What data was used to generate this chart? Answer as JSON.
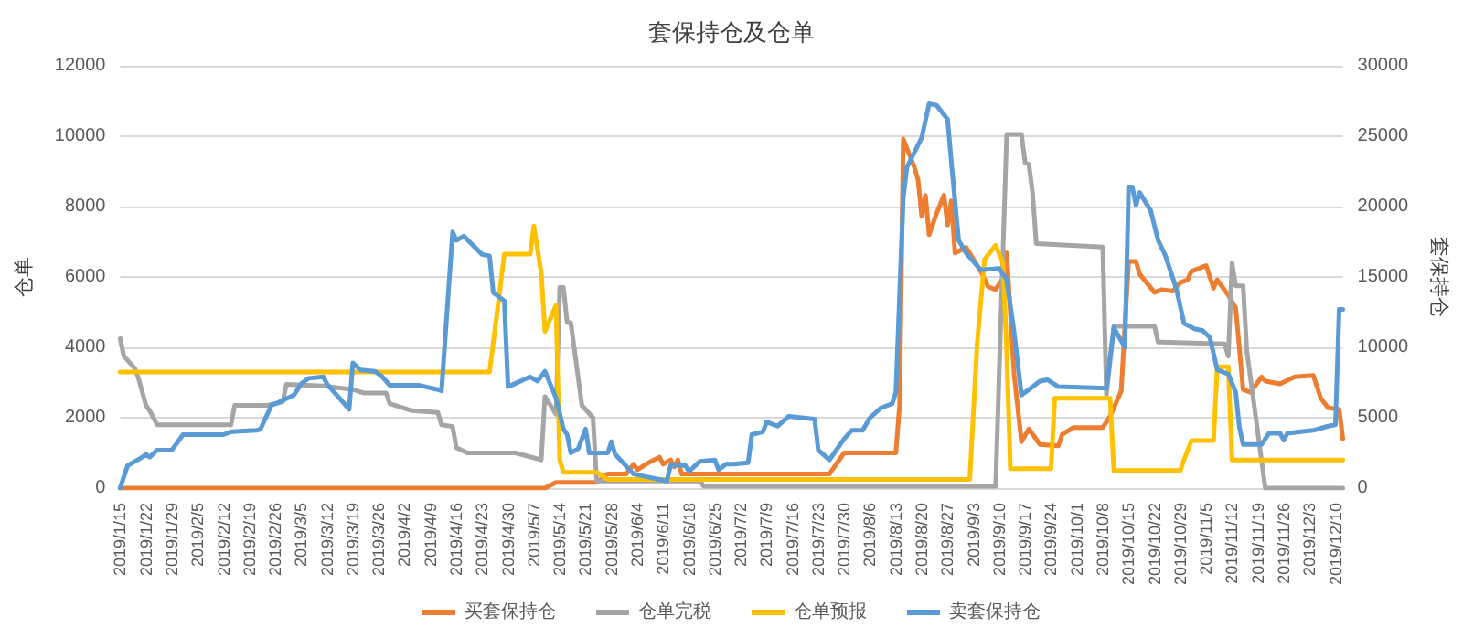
{
  "chart_data": {
    "type": "line",
    "title": "套保持仓及仓单",
    "ylabel": "仓单",
    "y2label": "套保持仓",
    "xlim": [
      "2019-01-15",
      "2019-12-12"
    ],
    "xticks": [
      {
        "value": "2019-01-15",
        "label": "2019/1/15"
      },
      {
        "value": "2019-01-22",
        "label": "2019/1/22"
      },
      {
        "value": "2019-01-29",
        "label": "2019/1/29"
      },
      {
        "value": "2019-02-05",
        "label": "2019/2/5"
      },
      {
        "value": "2019-02-12",
        "label": "2019/2/12"
      },
      {
        "value": "2019-02-19",
        "label": "2019/2/19"
      },
      {
        "value": "2019-02-26",
        "label": "2019/2/26"
      },
      {
        "value": "2019-03-05",
        "label": "2019/3/5"
      },
      {
        "value": "2019-03-12",
        "label": "2019/3/12"
      },
      {
        "value": "2019-03-19",
        "label": "2019/3/19"
      },
      {
        "value": "2019-03-26",
        "label": "2019/3/26"
      },
      {
        "value": "2019-04-02",
        "label": "2019/4/2"
      },
      {
        "value": "2019-04-09",
        "label": "2019/4/9"
      },
      {
        "value": "2019-04-16",
        "label": "2019/4/16"
      },
      {
        "value": "2019-04-23",
        "label": "2019/4/23"
      },
      {
        "value": "2019-04-30",
        "label": "2019/4/30"
      },
      {
        "value": "2019-05-07",
        "label": "2019/5/7"
      },
      {
        "value": "2019-05-14",
        "label": "2019/5/14"
      },
      {
        "value": "2019-05-21",
        "label": "2019/5/21"
      },
      {
        "value": "2019-05-28",
        "label": "2019/5/28"
      },
      {
        "value": "2019-06-04",
        "label": "2019/6/4"
      },
      {
        "value": "2019-06-11",
        "label": "2019/6/11"
      },
      {
        "value": "2019-06-18",
        "label": "2019/6/18"
      },
      {
        "value": "2019-06-25",
        "label": "2019/6/25"
      },
      {
        "value": "2019-07-02",
        "label": "2019/7/2"
      },
      {
        "value": "2019-07-09",
        "label": "2019/7/9"
      },
      {
        "value": "2019-07-16",
        "label": "2019/7/16"
      },
      {
        "value": "2019-07-23",
        "label": "2019/7/23"
      },
      {
        "value": "2019-07-30",
        "label": "2019/7/30"
      },
      {
        "value": "2019-08-06",
        "label": "2019/8/6"
      },
      {
        "value": "2019-08-13",
        "label": "2019/8/13"
      },
      {
        "value": "2019-08-20",
        "label": "2019/8/20"
      },
      {
        "value": "2019-08-27",
        "label": "2019/8/27"
      },
      {
        "value": "2019-09-03",
        "label": "2019/9/3"
      },
      {
        "value": "2019-09-10",
        "label": "2019/9/10"
      },
      {
        "value": "2019-09-17",
        "label": "2019/9/17"
      },
      {
        "value": "2019-09-24",
        "label": "2019/9/24"
      },
      {
        "value": "2019-10-01",
        "label": "2019/10/1"
      },
      {
        "value": "2019-10-08",
        "label": "2019/10/8"
      },
      {
        "value": "2019-10-15",
        "label": "2019/10/15"
      },
      {
        "value": "2019-10-22",
        "label": "2019/10/22"
      },
      {
        "value": "2019-10-29",
        "label": "2019/10/29"
      },
      {
        "value": "2019-11-05",
        "label": "2019/11/5"
      },
      {
        "value": "2019-11-12",
        "label": "2019/11/12"
      },
      {
        "value": "2019-11-19",
        "label": "2019/11/19"
      },
      {
        "value": "2019-11-26",
        "label": "2019/11/26"
      },
      {
        "value": "2019-12-03",
        "label": "2019/12/3"
      },
      {
        "value": "2019-12-10",
        "label": "2019/12/10"
      }
    ],
    "ylim": [
      0,
      12000
    ],
    "yticks": [
      0,
      2000,
      4000,
      6000,
      8000,
      10000,
      12000
    ],
    "y2lim": [
      0,
      30000
    ],
    "y2ticks": [
      0,
      5000,
      10000,
      15000,
      20000,
      25000,
      30000
    ],
    "grid": "y",
    "legend": "bottom",
    "marker": "none",
    "line_style": "solid",
    "series": [
      {
        "name": "买套保持仓",
        "color": "#ed7d31",
        "axis": "y2",
        "x": [
          "2019-01-15",
          "2019-05-10",
          "2019-05-13",
          "2019-05-24",
          "2019-05-27",
          "2019-06-01",
          "2019-06-03",
          "2019-06-04",
          "2019-06-07",
          "2019-06-10",
          "2019-06-11",
          "2019-06-13",
          "2019-06-14",
          "2019-06-15",
          "2019-06-16",
          "2019-07-26",
          "2019-07-30",
          "2019-08-13",
          "2019-08-14",
          "2019-08-15",
          "2019-08-18",
          "2019-08-19",
          "2019-08-20",
          "2019-08-21",
          "2019-08-22",
          "2019-08-24",
          "2019-08-26",
          "2019-08-27",
          "2019-08-28",
          "2019-08-29",
          "2019-09-01",
          "2019-09-05",
          "2019-09-07",
          "2019-09-09",
          "2019-09-11",
          "2019-09-12",
          "2019-09-14",
          "2019-09-16",
          "2019-09-18",
          "2019-09-21",
          "2019-09-26",
          "2019-09-27",
          "2019-09-30",
          "2019-10-08",
          "2019-10-10",
          "2019-10-13",
          "2019-10-15",
          "2019-10-17",
          "2019-10-18",
          "2019-10-22",
          "2019-10-24",
          "2019-10-27",
          "2019-10-29",
          "2019-10-31",
          "2019-11-01",
          "2019-11-05",
          "2019-11-07",
          "2019-11-08",
          "2019-11-11",
          "2019-11-13",
          "2019-11-15",
          "2019-11-17",
          "2019-11-20",
          "2019-11-21",
          "2019-11-25",
          "2019-11-29",
          "2019-12-04",
          "2019-12-06",
          "2019-12-08",
          "2019-12-11",
          "2019-12-12"
        ],
        "values": [
          0,
          0,
          400,
          400,
          1000,
          1000,
          1700,
          1300,
          1800,
          2200,
          1700,
          2000,
          1500,
          2000,
          1000,
          1000,
          2500,
          2500,
          5900,
          24800,
          22800,
          21900,
          19300,
          20800,
          18000,
          19500,
          20800,
          18700,
          20400,
          16700,
          17100,
          15400,
          14300,
          14100,
          14900,
          16700,
          8100,
          3300,
          4200,
          3100,
          3000,
          3800,
          4300,
          4300,
          5100,
          6900,
          16100,
          16100,
          15200,
          13900,
          14100,
          14000,
          14600,
          14800,
          15400,
          15800,
          14200,
          14800,
          13700,
          12800,
          7000,
          6800,
          7900,
          7600,
          7400,
          7900,
          8000,
          6400,
          5700,
          5600,
          3500
        ]
      },
      {
        "name": "仓单完税",
        "color": "#a5a5a5",
        "axis": "y",
        "x": [
          "2019-01-15",
          "2019-01-16",
          "2019-01-19",
          "2019-01-20",
          "2019-01-22",
          "2019-01-23",
          "2019-01-25",
          "2019-02-14",
          "2019-02-15",
          "2019-02-24",
          "2019-02-28",
          "2019-03-01",
          "2019-03-11",
          "2019-03-19",
          "2019-03-22",
          "2019-03-28",
          "2019-03-29",
          "2019-04-04",
          "2019-04-11",
          "2019-04-12",
          "2019-04-15",
          "2019-04-16",
          "2019-04-19",
          "2019-05-02",
          "2019-05-09",
          "2019-05-10",
          "2019-05-13",
          "2019-05-14",
          "2019-05-15",
          "2019-05-16",
          "2019-05-17",
          "2019-05-20",
          "2019-05-23",
          "2019-05-24",
          "2019-06-21",
          "2019-06-22",
          "2019-09-09",
          "2019-09-12",
          "2019-09-16",
          "2019-09-17",
          "2019-09-18",
          "2019-09-19",
          "2019-09-20",
          "2019-10-08",
          "2019-10-09",
          "2019-10-11",
          "2019-10-22",
          "2019-10-23",
          "2019-11-10",
          "2019-11-11",
          "2019-11-12",
          "2019-11-13",
          "2019-11-15",
          "2019-11-16",
          "2019-11-18",
          "2019-11-21",
          "2019-12-12"
        ],
        "values": [
          4250,
          3750,
          3400,
          3100,
          2350,
          2200,
          1800,
          1800,
          2350,
          2350,
          2450,
          2950,
          2900,
          2800,
          2700,
          2700,
          2400,
          2200,
          2150,
          1800,
          1750,
          1150,
          1000,
          1000,
          800,
          2600,
          2100,
          5700,
          5700,
          4700,
          4700,
          2350,
          2000,
          200,
          200,
          50,
          50,
          10050,
          10050,
          9250,
          9200,
          8400,
          6950,
          6850,
          2650,
          4600,
          4600,
          4150,
          4100,
          3750,
          6400,
          5750,
          5750,
          3900,
          2350,
          0,
          0
        ]
      },
      {
        "name": "仓单预报",
        "color": "#ffc000",
        "axis": "y",
        "x": [
          "2019-01-15",
          "2019-04-25",
          "2019-04-27",
          "2019-04-29",
          "2019-05-06",
          "2019-05-07",
          "2019-05-09",
          "2019-05-10",
          "2019-05-13",
          "2019-05-14",
          "2019-05-15",
          "2019-05-24",
          "2019-05-27",
          "2019-09-02",
          "2019-09-04",
          "2019-09-06",
          "2019-09-09",
          "2019-09-11",
          "2019-09-12",
          "2019-09-13",
          "2019-09-24",
          "2019-09-25",
          "2019-10-10",
          "2019-10-11",
          "2019-10-29",
          "2019-10-30",
          "2019-11-01",
          "2019-11-07",
          "2019-11-08",
          "2019-11-11",
          "2019-11-12",
          "2019-12-12"
        ],
        "values": [
          3300,
          3300,
          4950,
          6650,
          6650,
          7450,
          6100,
          4450,
          5200,
          800,
          450,
          450,
          250,
          250,
          4100,
          6500,
          6900,
          6400,
          3900,
          550,
          550,
          2550,
          2550,
          500,
          500,
          800,
          1350,
          1350,
          3450,
          3450,
          800,
          800
        ]
      },
      {
        "name": "卖套保持仓",
        "color": "#5b9bd5",
        "axis": "y2",
        "x": [
          "2019-01-15",
          "2019-01-17",
          "2019-01-21",
          "2019-01-22",
          "2019-01-23",
          "2019-01-25",
          "2019-01-29",
          "2019-02-01",
          "2019-02-12",
          "2019-02-14",
          "2019-02-21",
          "2019-02-22",
          "2019-02-25",
          "2019-02-27",
          "2019-03-03",
          "2019-03-05",
          "2019-03-07",
          "2019-03-11",
          "2019-03-12",
          "2019-03-18",
          "2019-03-19",
          "2019-03-21",
          "2019-03-25",
          "2019-03-27",
          "2019-03-29",
          "2019-04-06",
          "2019-04-11",
          "2019-04-12",
          "2019-04-15",
          "2019-04-16",
          "2019-04-18",
          "2019-04-23",
          "2019-04-25",
          "2019-04-26",
          "2019-04-29",
          "2019-04-30",
          "2019-05-06",
          "2019-05-08",
          "2019-05-10",
          "2019-05-13",
          "2019-05-15",
          "2019-05-16",
          "2019-05-17",
          "2019-05-19",
          "2019-05-21",
          "2019-05-22",
          "2019-05-27",
          "2019-05-28",
          "2019-05-29",
          "2019-06-03",
          "2019-06-12",
          "2019-06-13",
          "2019-06-17",
          "2019-06-18",
          "2019-06-21",
          "2019-06-25",
          "2019-06-26",
          "2019-06-28",
          "2019-06-30",
          "2019-07-04",
          "2019-07-05",
          "2019-07-08",
          "2019-07-09",
          "2019-07-12",
          "2019-07-15",
          "2019-07-22",
          "2019-07-23",
          "2019-07-26",
          "2019-07-30",
          "2019-08-01",
          "2019-08-04",
          "2019-08-06",
          "2019-08-09",
          "2019-08-12",
          "2019-08-13",
          "2019-08-15",
          "2019-08-16",
          "2019-08-20",
          "2019-08-22",
          "2019-08-24",
          "2019-08-27",
          "2019-08-28",
          "2019-08-30",
          "2019-09-01",
          "2019-09-05",
          "2019-09-10",
          "2019-09-12",
          "2019-09-14",
          "2019-09-16",
          "2019-09-18",
          "2019-09-21",
          "2019-09-23",
          "2019-09-26",
          "2019-10-09",
          "2019-10-11",
          "2019-10-14",
          "2019-10-15",
          "2019-10-16",
          "2019-10-17",
          "2019-10-18",
          "2019-10-21",
          "2019-10-23",
          "2019-10-25",
          "2019-10-28",
          "2019-10-30",
          "2019-11-02",
          "2019-11-04",
          "2019-11-06",
          "2019-11-08",
          "2019-11-11",
          "2019-11-13",
          "2019-11-14",
          "2019-11-15",
          "2019-11-20",
          "2019-11-22",
          "2019-11-25",
          "2019-11-26",
          "2019-11-27",
          "2019-12-04",
          "2019-12-08",
          "2019-12-10",
          "2019-12-11",
          "2019-12-12"
        ],
        "values": [
          0,
          1600,
          2200,
          2400,
          2200,
          2700,
          2700,
          3800,
          3800,
          4000,
          4100,
          4200,
          5900,
          6100,
          6600,
          7400,
          7800,
          7900,
          7400,
          5600,
          8900,
          8400,
          8300,
          7900,
          7300,
          7300,
          7000,
          6900,
          18200,
          17600,
          17900,
          16600,
          16500,
          13900,
          13300,
          7200,
          7900,
          7600,
          8300,
          6400,
          4200,
          3800,
          2500,
          2800,
          4200,
          2500,
          2500,
          3300,
          2400,
          1000,
          500,
          1600,
          1600,
          1200,
          1900,
          2000,
          1300,
          1700,
          1700,
          1800,
          3800,
          4000,
          4700,
          4400,
          5100,
          4900,
          2700,
          2000,
          3500,
          4100,
          4100,
          5000,
          5700,
          6000,
          6800,
          20600,
          22800,
          24900,
          27300,
          27200,
          26200,
          23200,
          17600,
          16700,
          15500,
          15600,
          14800,
          11100,
          6600,
          7000,
          7600,
          7700,
          7200,
          7100,
          11400,
          10000,
          21400,
          21400,
          20100,
          21000,
          19700,
          17600,
          16500,
          14100,
          11700,
          11300,
          11200,
          10700,
          8400,
          8100,
          6800,
          4300,
          3100,
          3100,
          3900,
          3900,
          3400,
          3900,
          4100,
          4400,
          4500,
          12700,
          12700
        ]
      }
    ]
  }
}
